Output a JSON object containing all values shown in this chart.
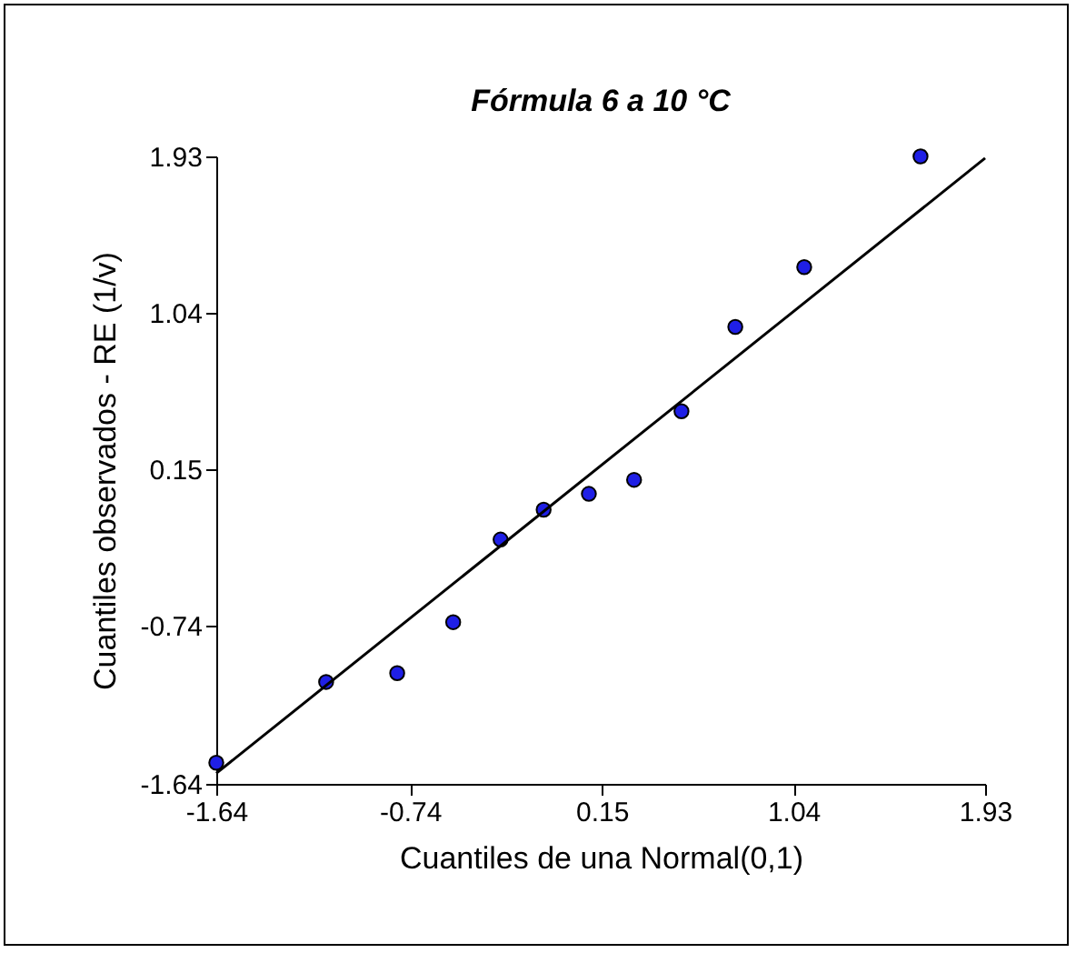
{
  "chart_data": {
    "type": "scatter",
    "title": "Fórmula 6 a 10 °C",
    "xlabel": "Cuantiles de una Normal(0,1)",
    "ylabel": "Cuantiles observados - RE (1/v)",
    "xlim": [
      -1.64,
      1.93
    ],
    "ylim": [
      -1.64,
      1.93
    ],
    "xticks": [
      -1.64,
      -0.74,
      0.15,
      1.04,
      1.93
    ],
    "yticks": [
      -1.64,
      -0.74,
      0.15,
      1.04,
      1.93
    ],
    "grid": false,
    "series": [
      {
        "marker": "circle",
        "color": "#1f1fe6",
        "x": [
          -1.64,
          -1.13,
          -0.8,
          -0.54,
          -0.32,
          -0.12,
          0.09,
          0.3,
          0.52,
          0.77,
          1.09,
          1.63
        ],
        "values": [
          -1.52,
          -1.06,
          -1.01,
          -0.72,
          -0.25,
          -0.08,
          0.01,
          0.09,
          0.48,
          0.96,
          1.3,
          1.93
        ]
      },
      {
        "type": "line",
        "marker": "none",
        "color": "#000000",
        "line_style": "solid",
        "x": [
          -1.64,
          1.93
        ],
        "values": [
          -1.58,
          1.92
        ]
      }
    ]
  }
}
